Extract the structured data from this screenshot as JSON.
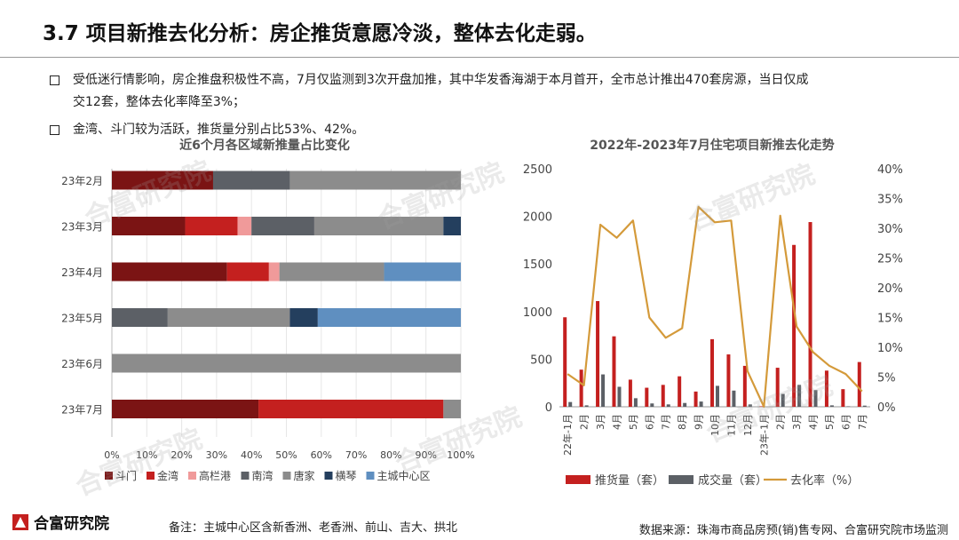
{
  "page": {
    "title": "3.7 项目新推去化分析：房企推货意愿冷淡，整体去化走弱。",
    "bullets": [
      "受低迷行情影响，房企推盘积极性不高，7月仅监测到3次开盘加推，其中华发香海湖于本月首开，全市总计推出470套房源，当日仅成",
      "交12套，整体去化率降至3%；",
      "金湾、斗门较为活跃，推货量分别占比53%、42%。"
    ],
    "watermark": "合富研究院",
    "logo_text": "合富研究院",
    "note": "备注：主城中心区含新香洲、老香洲、前山、吉大、拱北",
    "source": "数据来源：珠海市商品房预(销)售专网、合富研究院市场监测"
  },
  "colors": {
    "斗门": "#7b1414",
    "金湾": "#c4201f",
    "高栏港": "#f09a9a",
    "南湾": "#5c6066",
    "唐家": "#8c8c8c",
    "横琴": "#243f5e",
    "主城中心区": "#5f8fc0",
    "supply": "#c4201f",
    "deal": "#5c6066",
    "rate": "#d49a3a"
  },
  "chart_data": [
    {
      "type": "bar",
      "orientation": "horizontal-stacked-percent",
      "title": "近6个月各区域新推量占比变化",
      "categories": [
        "23年2月",
        "23年3月",
        "23年4月",
        "23年5月",
        "23年6月",
        "23年7月"
      ],
      "series": [
        {
          "name": "斗门",
          "values": [
            29,
            21,
            33,
            0,
            0,
            42
          ]
        },
        {
          "name": "金湾",
          "values": [
            0,
            15,
            12,
            0,
            0,
            53
          ]
        },
        {
          "name": "高栏港",
          "values": [
            0,
            4,
            3,
            0,
            0,
            0
          ]
        },
        {
          "name": "南湾",
          "values": [
            22,
            18,
            0,
            16,
            0,
            0
          ]
        },
        {
          "name": "唐家",
          "values": [
            49,
            37,
            30,
            35,
            100,
            5
          ]
        },
        {
          "name": "横琴",
          "values": [
            0,
            5,
            0,
            8,
            0,
            0
          ]
        },
        {
          "name": "主城中心区",
          "values": [
            0,
            0,
            22,
            41,
            0,
            0
          ]
        }
      ],
      "xlim": [
        0,
        100
      ],
      "xticks": [
        "0%",
        "10%",
        "20%",
        "30%",
        "40%",
        "50%",
        "60%",
        "70%",
        "80%",
        "90%",
        "100%"
      ],
      "legend": "bottom"
    },
    {
      "type": "bar",
      "title": "2022年-2023年7月住宅项目新推去化走势",
      "categories": [
        "22年-1月",
        "2月",
        "3月",
        "4月",
        "5月",
        "6月",
        "7月",
        "8月",
        "9月",
        "10月",
        "11月",
        "12月",
        "23年-1月",
        "2月",
        "3月",
        "4月",
        "5月",
        "6月",
        "7月"
      ],
      "series": [
        {
          "name": "推货量（套）",
          "type": "bar",
          "axis": "left",
          "values": [
            940,
            390,
            1110,
            740,
            285,
            200,
            230,
            320,
            160,
            710,
            550,
            430,
            5,
            410,
            1700,
            1940,
            380,
            185,
            470
          ]
        },
        {
          "name": "成交量（套）",
          "type": "bar",
          "axis": "left",
          "values": [
            50,
            15,
            340,
            210,
            90,
            35,
            25,
            40,
            55,
            220,
            170,
            25,
            0,
            135,
            230,
            175,
            15,
            5,
            12
          ]
        },
        {
          "name": "去化率（%）",
          "type": "line",
          "axis": "right",
          "values": [
            5.5,
            3.6,
            30.6,
            28.4,
            31.3,
            15.0,
            11.6,
            13.2,
            33.6,
            31.0,
            31.3,
            6.0,
            0,
            32.1,
            13.5,
            9.2,
            6.9,
            5.5,
            2.6
          ]
        }
      ],
      "ylim_left": [
        0,
        2500
      ],
      "ylim_right": [
        0,
        40
      ],
      "yticks_left": [
        "0",
        "500",
        "1000",
        "1500",
        "2000",
        "2500"
      ],
      "yticks_right": [
        "0%",
        "5%",
        "10%",
        "15%",
        "20%",
        "25%",
        "30%",
        "35%",
        "40%"
      ],
      "legend": "bottom"
    }
  ]
}
